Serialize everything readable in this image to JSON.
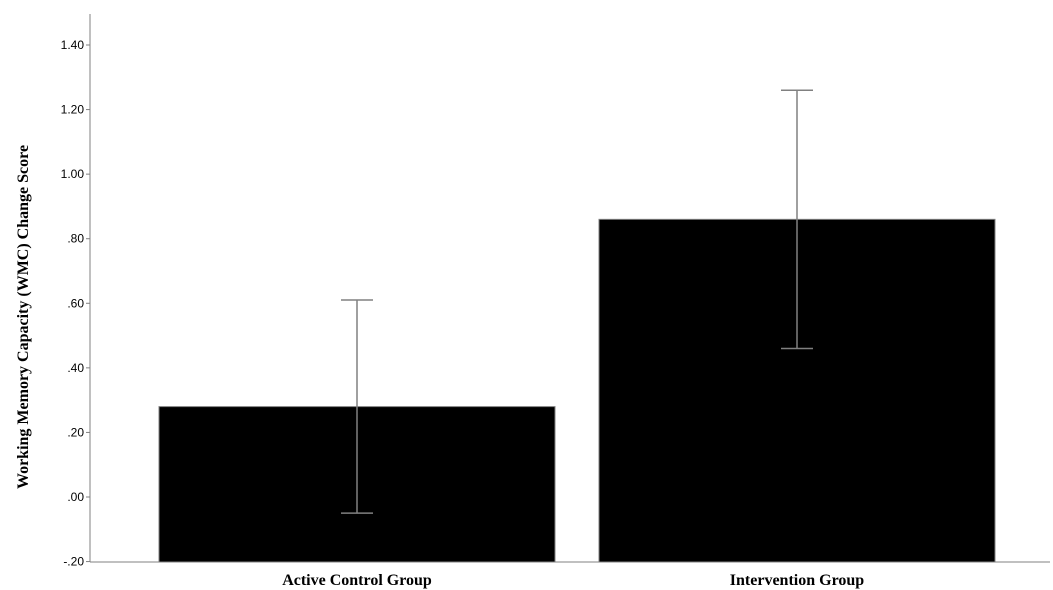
{
  "chart_data": {
    "type": "bar",
    "title": "",
    "xlabel": "",
    "ylabel": "Working Memory Capacity (WMC) Change Score",
    "categories": [
      "Active Control Group",
      "Intervention Group"
    ],
    "values": [
      0.28,
      0.86
    ],
    "error_low": [
      -0.05,
      0.46
    ],
    "error_high": [
      0.61,
      1.26
    ],
    "ylim": [
      -0.2,
      1.48
    ],
    "yticks": [
      -0.2,
      0.0,
      0.2,
      0.4,
      0.6,
      0.8,
      1.0,
      1.2,
      1.4
    ],
    "ytick_labels": [
      "-.20",
      ".00",
      ".20",
      ".40",
      ".60",
      ".80",
      "1.00",
      "1.20",
      "1.40"
    ],
    "grid": false,
    "bar_color": "#000000",
    "error_bar_color": "#808080"
  }
}
